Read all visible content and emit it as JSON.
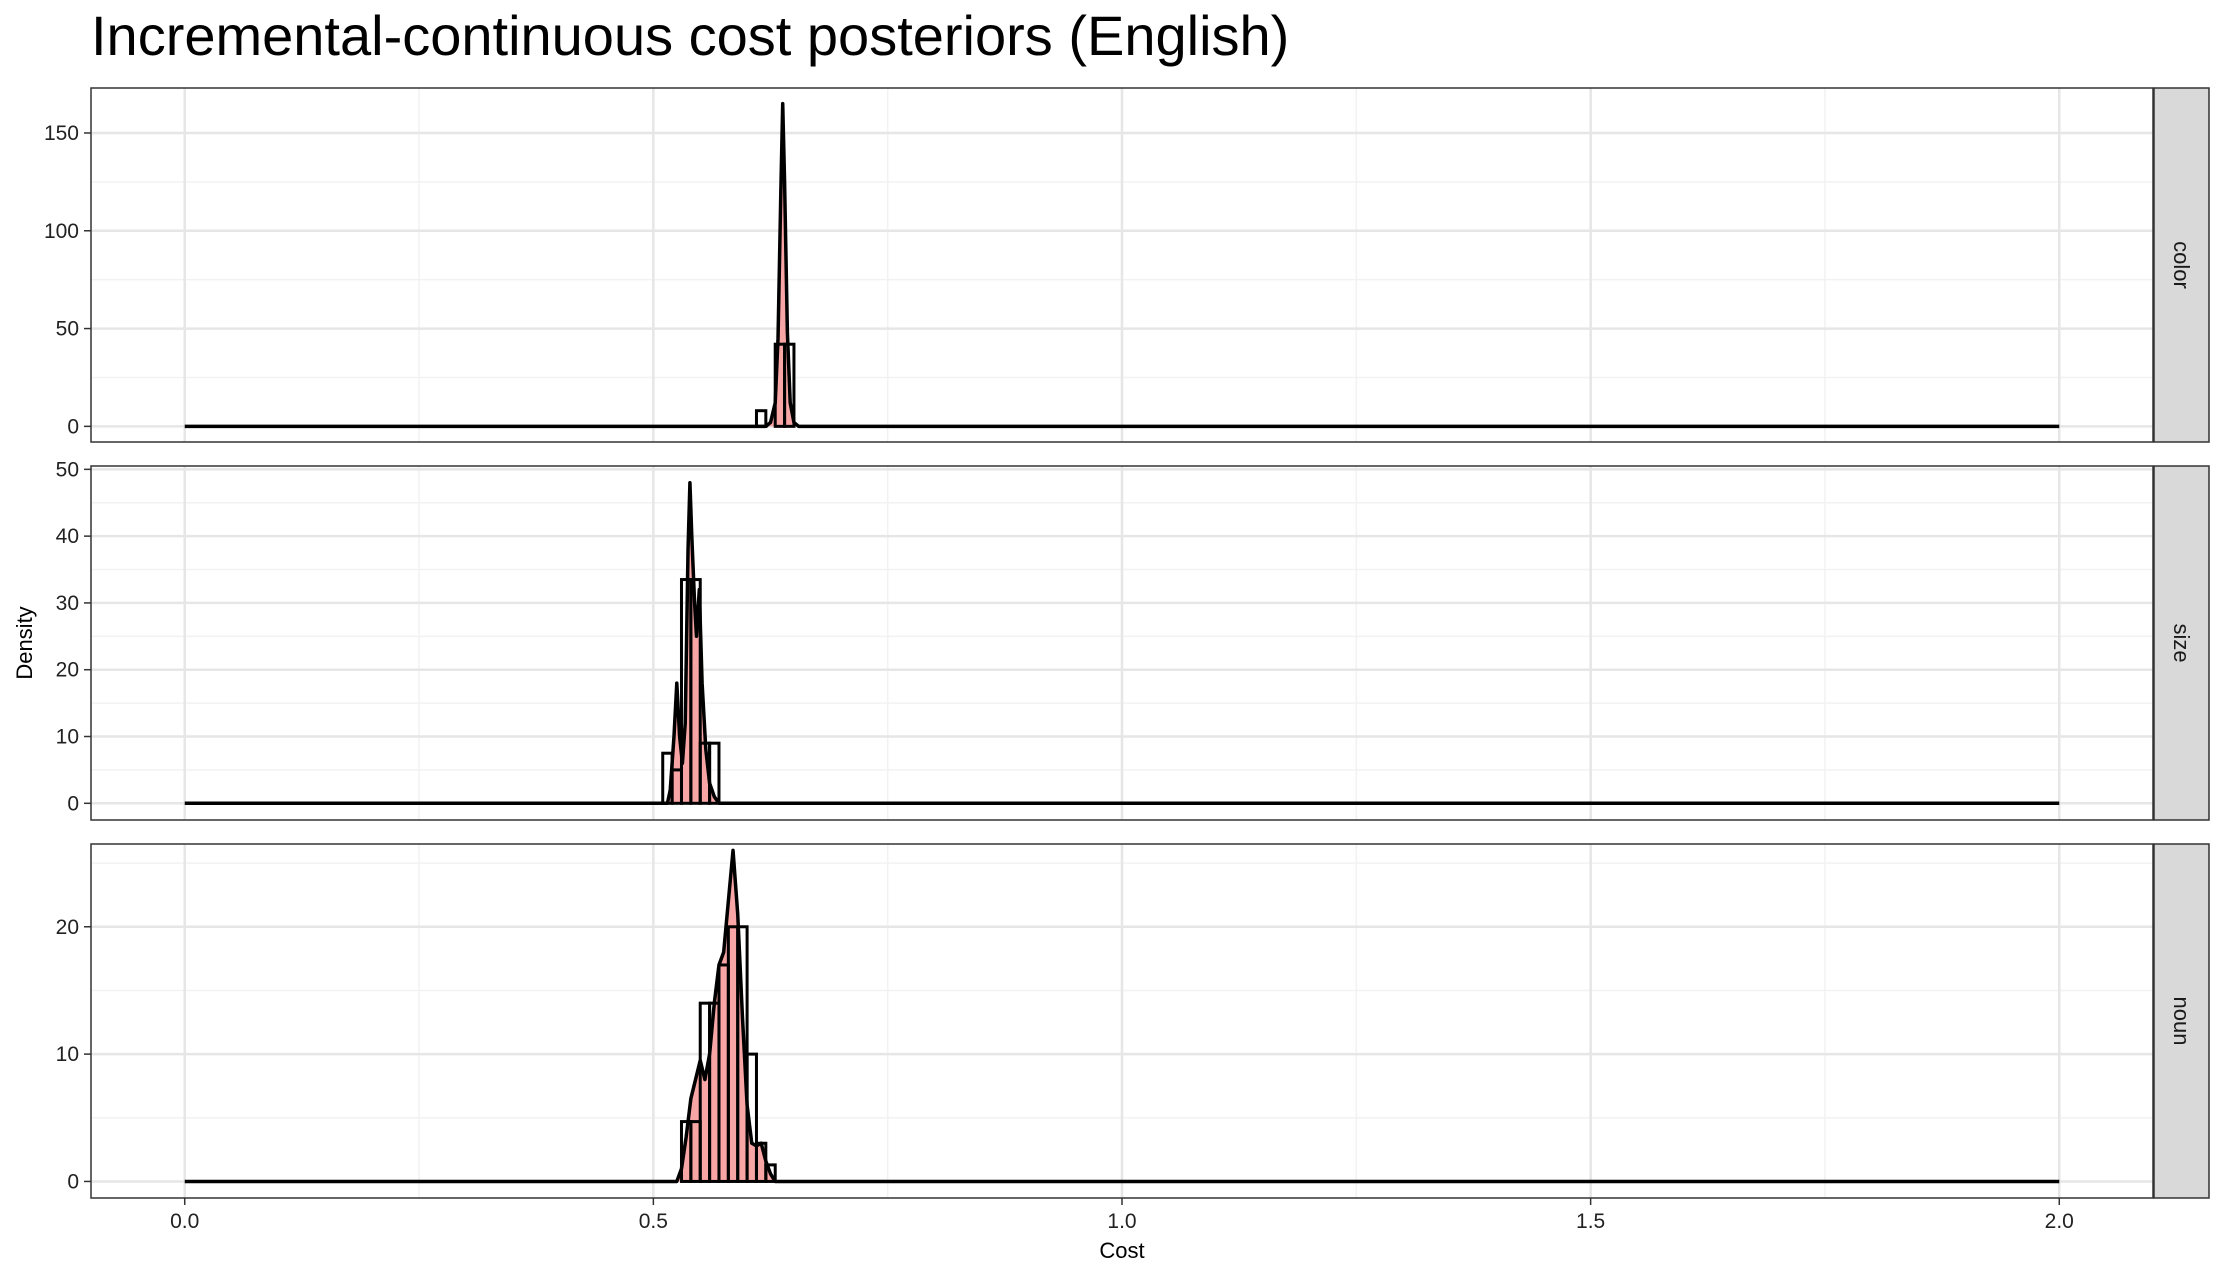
{
  "chart_data": {
    "type": "area",
    "title": "Incremental-continuous cost posteriors (English)",
    "xlabel": "Cost",
    "ylabel": "Density",
    "xlim": [
      -0.1,
      2.1
    ],
    "x_ticks": [
      0.0,
      0.5,
      1.0,
      1.5,
      2.0
    ],
    "x_tick_labels": [
      "0.0",
      "0.5",
      "1.0",
      "1.5",
      "2.0"
    ],
    "grid": true,
    "legend": "none",
    "colors": {
      "fill": "#f8a5a5",
      "line": "#000000",
      "panel_border": "#333333",
      "strip_fill": "#d9d9d9",
      "grid_major": "#e6e6e6",
      "grid_minor": "#f2f2f2"
    },
    "panels": [
      {
        "label": "color",
        "ylim": [
          -8,
          173
        ],
        "y_ticks": [
          0,
          50,
          100,
          150
        ],
        "y_tick_labels": [
          "0",
          "50",
          "100",
          "150"
        ],
        "density": [
          [
            0.0,
            0
          ],
          [
            0.62,
            0
          ],
          [
            0.625,
            2
          ],
          [
            0.63,
            12
          ],
          [
            0.633,
            45
          ],
          [
            0.636,
            120
          ],
          [
            0.638,
            165
          ],
          [
            0.64,
            125
          ],
          [
            0.643,
            48
          ],
          [
            0.646,
            12
          ],
          [
            0.65,
            2
          ],
          [
            0.655,
            0
          ],
          [
            2.0,
            0
          ]
        ],
        "histogram": {
          "edges": [
            0.61,
            0.62,
            0.63,
            0.64,
            0.65
          ],
          "counts": [
            8,
            0,
            42,
            42
          ]
        }
      },
      {
        "label": "size",
        "ylim": [
          -2.5,
          50.5
        ],
        "y_ticks": [
          0,
          10,
          20,
          30,
          40,
          50
        ],
        "y_tick_labels": [
          "0",
          "10",
          "20",
          "30",
          "40",
          "50"
        ],
        "density": [
          [
            0.0,
            0
          ],
          [
            0.515,
            0
          ],
          [
            0.518,
            2
          ],
          [
            0.522,
            10
          ],
          [
            0.525,
            18
          ],
          [
            0.528,
            10
          ],
          [
            0.531,
            6
          ],
          [
            0.534,
            12
          ],
          [
            0.537,
            38
          ],
          [
            0.539,
            48
          ],
          [
            0.541,
            40
          ],
          [
            0.544,
            30
          ],
          [
            0.546,
            25
          ],
          [
            0.549,
            32
          ],
          [
            0.552,
            18
          ],
          [
            0.556,
            8
          ],
          [
            0.56,
            3
          ],
          [
            0.565,
            1
          ],
          [
            0.57,
            0
          ],
          [
            2.0,
            0
          ]
        ],
        "histogram": {
          "edges": [
            0.51,
            0.52,
            0.53,
            0.54,
            0.55,
            0.56,
            0.57
          ],
          "counts": [
            7.5,
            5,
            33.5,
            33.5,
            9,
            9
          ]
        }
      },
      {
        "label": "noun",
        "ylim": [
          -1.3,
          26.5
        ],
        "y_ticks": [
          0,
          10,
          20
        ],
        "y_tick_labels": [
          "0",
          "10",
          "20"
        ],
        "density": [
          [
            0.0,
            0
          ],
          [
            0.525,
            0
          ],
          [
            0.53,
            1
          ],
          [
            0.535,
            3.5
          ],
          [
            0.54,
            6.5
          ],
          [
            0.545,
            8
          ],
          [
            0.55,
            9.5
          ],
          [
            0.555,
            8
          ],
          [
            0.56,
            10
          ],
          [
            0.565,
            14
          ],
          [
            0.57,
            17
          ],
          [
            0.575,
            18
          ],
          [
            0.58,
            22
          ],
          [
            0.585,
            26
          ],
          [
            0.59,
            21
          ],
          [
            0.595,
            13
          ],
          [
            0.6,
            6
          ],
          [
            0.605,
            3
          ],
          [
            0.61,
            2.8
          ],
          [
            0.615,
            3
          ],
          [
            0.62,
            1.6
          ],
          [
            0.625,
            0.6
          ],
          [
            0.63,
            0
          ],
          [
            2.0,
            0
          ]
        ],
        "histogram": {
          "edges": [
            0.53,
            0.54,
            0.55,
            0.56,
            0.57,
            0.58,
            0.59,
            0.6,
            0.61,
            0.62,
            0.63
          ],
          "counts": [
            4.7,
            4.7,
            14,
            14,
            17,
            20,
            20,
            10,
            3,
            1.3
          ]
        }
      }
    ]
  }
}
